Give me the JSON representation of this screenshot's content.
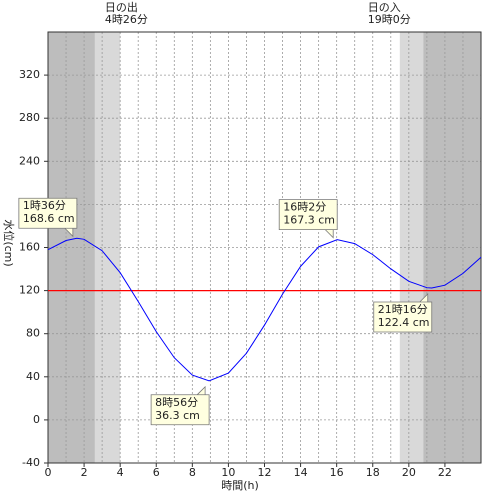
{
  "chart_data": {
    "type": "line",
    "xlabel": "時間(h)",
    "ylabel": "水位(cm)",
    "x": [
      0,
      1,
      1.6,
      2,
      3,
      4,
      5,
      6,
      7,
      8,
      8.93,
      10,
      11,
      12,
      13,
      14,
      15,
      16.03,
      17,
      18,
      19,
      20,
      21,
      21.27,
      22,
      23,
      24
    ],
    "values": [
      158,
      166.5,
      168.6,
      167.6,
      157,
      136.6,
      109.9,
      81.9,
      57.7,
      41.6,
      36.3,
      43.5,
      61.9,
      88,
      116.7,
      142.5,
      160.6,
      167.3,
      163.6,
      153.4,
      140.2,
      128.6,
      122.7,
      122.4,
      125,
      136,
      151
    ],
    "color": "#0000ff",
    "reference_line": {
      "value": 120,
      "color": "#ff0000"
    },
    "xlim": [
      0,
      24
    ],
    "xticks": [
      0,
      2,
      4,
      6,
      8,
      10,
      12,
      14,
      16,
      18,
      20,
      22
    ],
    "ylim": [
      -40,
      360
    ],
    "yticks": [
      -40,
      0,
      40,
      80,
      120,
      160,
      200,
      240,
      280,
      320
    ],
    "grid": true,
    "sun_events": [
      {
        "label": "日の出",
        "time_label": "4時26分",
        "x": 4.43
      },
      {
        "label": "日の入",
        "time_label": "19時0分",
        "x": 19
      }
    ],
    "callouts": [
      {
        "time_label": "1時36分",
        "x": 1.6,
        "value": 168.6,
        "value_label": "168.6 cm"
      },
      {
        "time_label": "8時56分",
        "x": 8.93,
        "value": 36.3,
        "value_label": "36.3 cm"
      },
      {
        "time_label": "16時2分",
        "x": 16.03,
        "value": 167.3,
        "value_label": "167.3 cm"
      },
      {
        "time_label": "21時16分",
        "x": 21.27,
        "value": 122.4,
        "value_label": "122.4 cm"
      }
    ]
  }
}
